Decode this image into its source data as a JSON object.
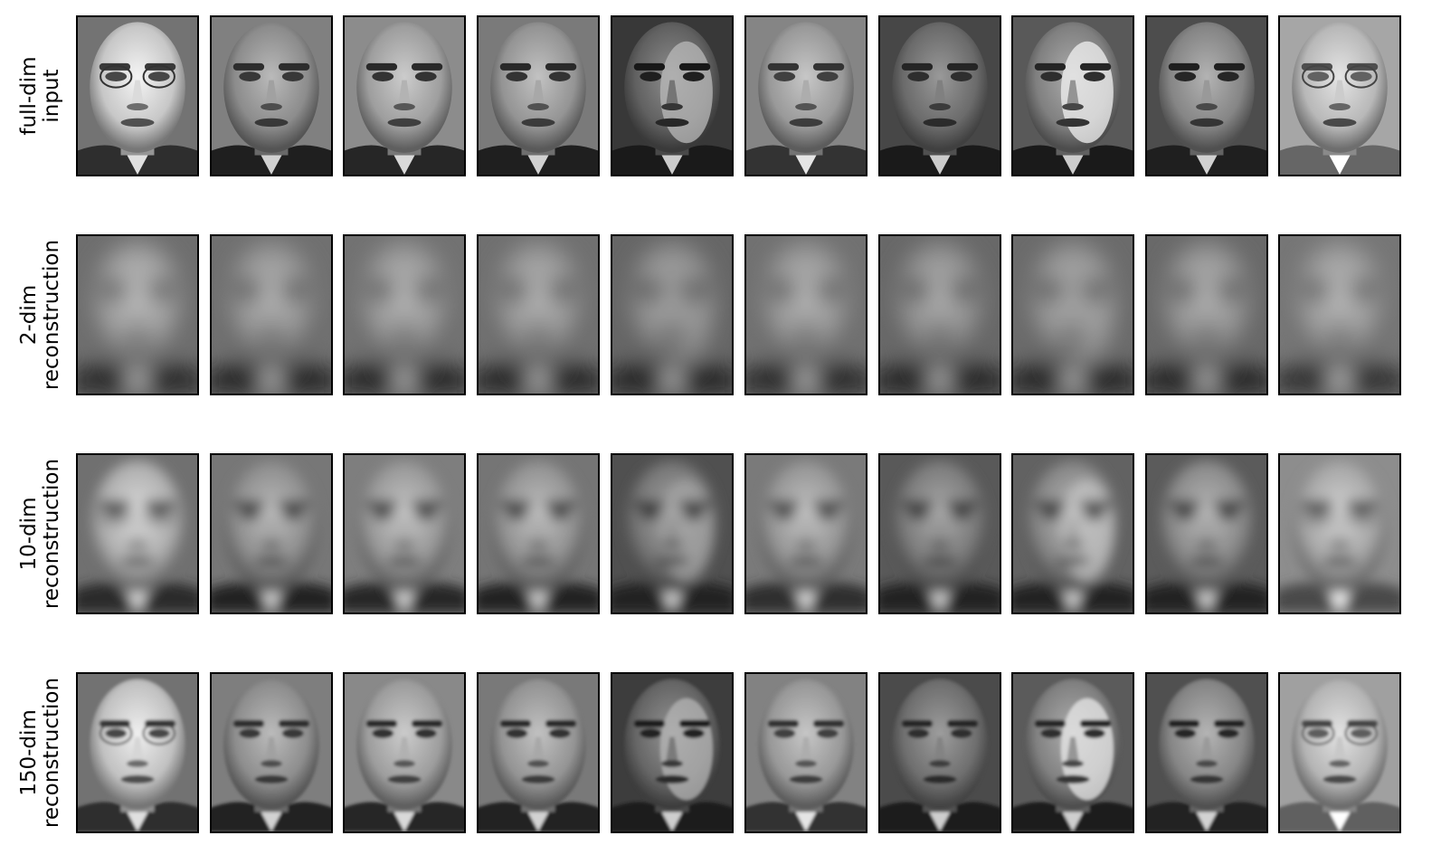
{
  "figure": {
    "background": "#ffffff",
    "frame_color": "#000000",
    "colormap": "gray",
    "rows": [
      {
        "label_lines": [
          "full-dim",
          "input"
        ],
        "kind": "input",
        "blur": 0
      },
      {
        "label_lines": [
          "2-dim",
          "reconstruction"
        ],
        "kind": "reconstruction-2",
        "blur": 9
      },
      {
        "label_lines": [
          "10-dim",
          "reconstruction"
        ],
        "kind": "reconstruction-10",
        "blur": 5
      },
      {
        "label_lines": [
          "150-dim",
          "reconstruction"
        ],
        "kind": "reconstruction-150",
        "blur": 1.2
      }
    ],
    "faces": [
      {
        "skin": 0.78,
        "bg": 0.45,
        "suit": 0.18,
        "eyes": 0.28,
        "glasses": true,
        "light": 0.0
      },
      {
        "skin": 0.55,
        "bg": 0.5,
        "suit": 0.12,
        "eyes": 0.22,
        "glasses": false,
        "light": 0.0
      },
      {
        "skin": 0.62,
        "bg": 0.55,
        "suit": 0.15,
        "eyes": 0.2,
        "glasses": false,
        "light": 0.0
      },
      {
        "skin": 0.58,
        "bg": 0.48,
        "suit": 0.12,
        "eyes": 0.2,
        "glasses": false,
        "light": 0.0
      },
      {
        "skin": 0.38,
        "bg": 0.22,
        "suit": 0.1,
        "eyes": 0.12,
        "glasses": false,
        "light": 0.35
      },
      {
        "skin": 0.6,
        "bg": 0.52,
        "suit": 0.2,
        "eyes": 0.25,
        "glasses": false,
        "light": 0.0
      },
      {
        "skin": 0.42,
        "bg": 0.28,
        "suit": 0.1,
        "eyes": 0.18,
        "glasses": false,
        "light": 0.0
      },
      {
        "skin": 0.5,
        "bg": 0.35,
        "suit": 0.1,
        "eyes": 0.18,
        "glasses": false,
        "light": 0.45
      },
      {
        "skin": 0.52,
        "bg": 0.3,
        "suit": 0.12,
        "eyes": 0.15,
        "glasses": false,
        "light": 0.0
      },
      {
        "skin": 0.72,
        "bg": 0.65,
        "suit": 0.4,
        "eyes": 0.38,
        "glasses": true,
        "light": 0.0
      }
    ]
  }
}
